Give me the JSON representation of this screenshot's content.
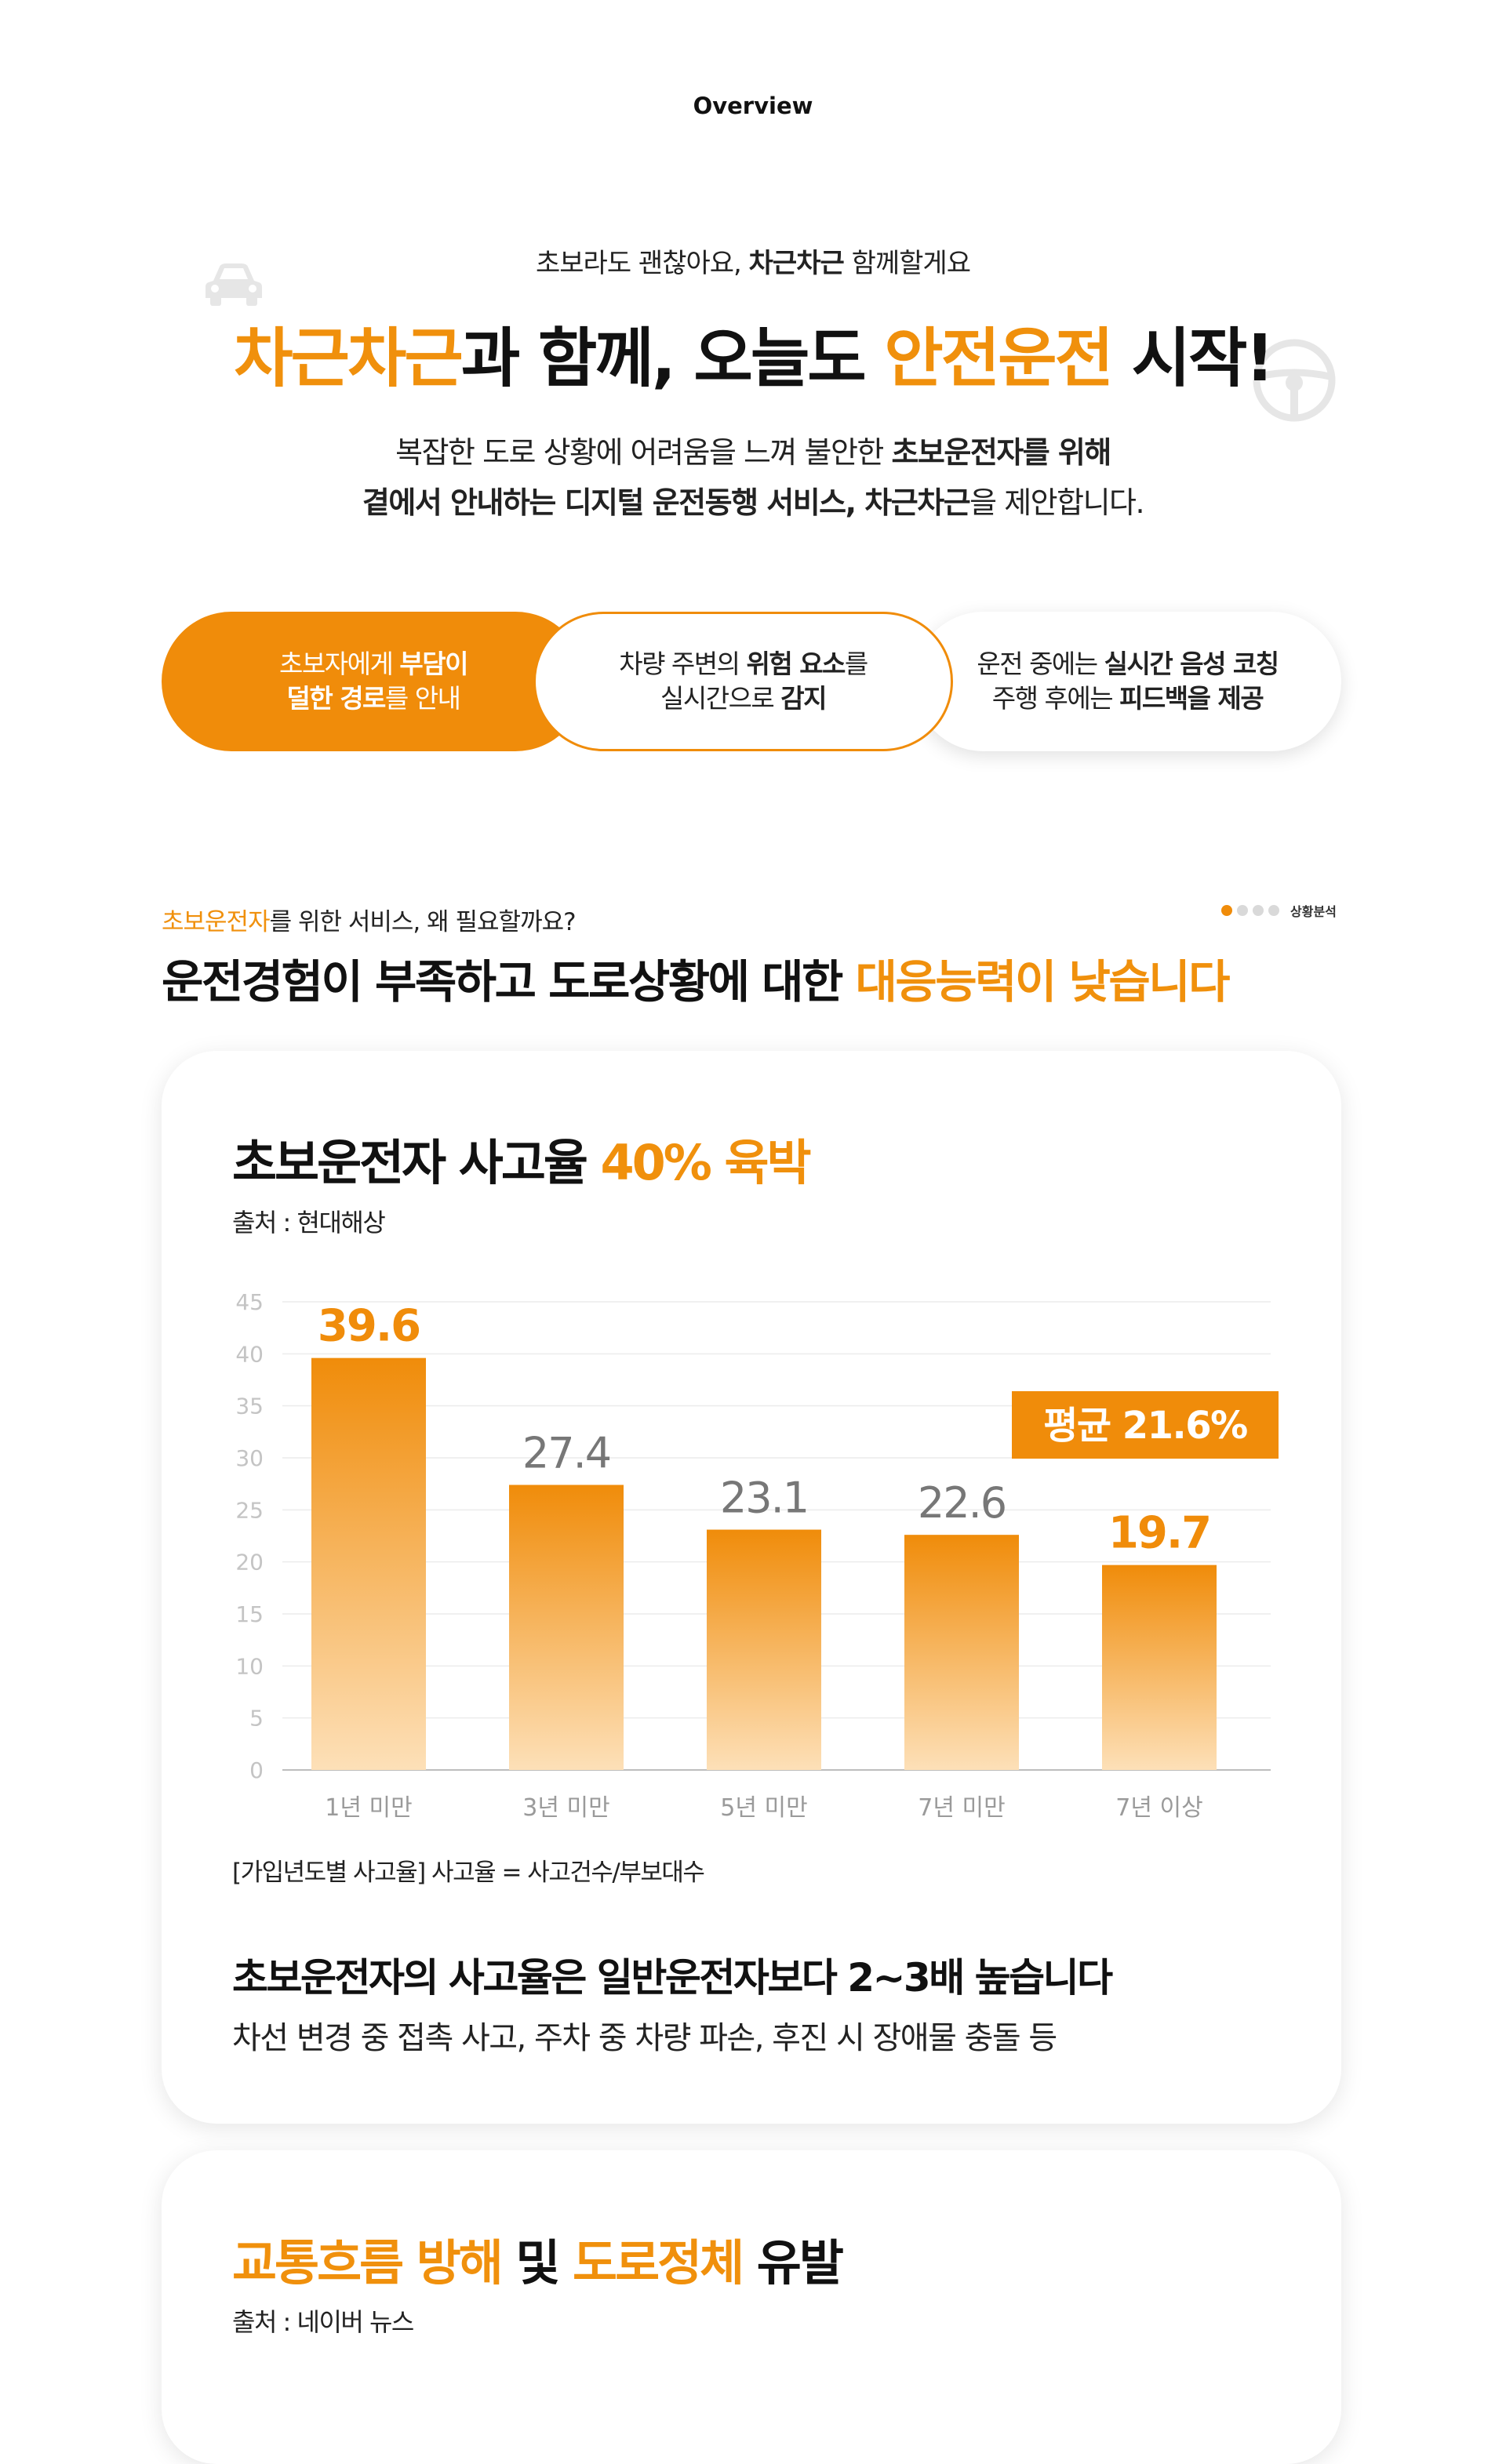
{
  "header": {
    "overview": "Overview"
  },
  "hero": {
    "tagline_pre": "초보라도 괜찮아요, ",
    "tagline_brand": "차근차근",
    "tagline_post": " 함께할게요",
    "title_brand": "차근차근",
    "title_mid": "과 함께, 오늘도 ",
    "title_highlight": "안전운전",
    "title_end": " 시작!",
    "desc_line1_pre": "복잡한 도로 상황에 어려움을 느껴 불안한 ",
    "desc_line1_bold": "초보운전자를 위해",
    "desc_line2_bold": "곁에서 안내하는 디지털 운전동행 서비스, 차근차근",
    "desc_line2_post": "을 제안합니다.",
    "icons": [
      "car-icon",
      "steering-wheel-icon"
    ]
  },
  "features": [
    {
      "l1_a": "초보자에게 ",
      "l1_b": "부담이",
      "l2_a": "덜한 경로",
      "l2_b": "를 안내"
    },
    {
      "l1_a": "차량 주변의 ",
      "l1_b": "위험 요소",
      "l1_c": "를",
      "l2_a": "실시간으로 ",
      "l2_b": "감지"
    },
    {
      "l1_a": "운전 중에는 ",
      "l1_b": "실시간 음성 코칭",
      "l2_a": "주행 후에는 ",
      "l2_b": "피드백을 제공"
    }
  ],
  "analysis": {
    "sub_highlight": "초보운전자",
    "sub_rest": "를 위한 서비스, 왜 필요할까요?",
    "title_pre": "운전경험이 부족하고 도로상황에 대한 ",
    "title_highlight": "대응능력이 낮습니다",
    "nav_label": "상황분석",
    "nav_dots": 4,
    "nav_active": 0
  },
  "card1": {
    "title_pre": "초보운전자 사고율 ",
    "title_highlight": "40% 육박",
    "source": "출처 : 현대해상",
    "note": "[가입년도별 사고율] 사고율 = 사고건수/부보대수",
    "claim": "초보운전자의 사고율은 일반운전자보다 2~3배 높습니다",
    "claim_desc": "차선 변경 중 접촉 사고, 주차 중 차량 파손, 후진 시 장애물 충돌 등"
  },
  "card2": {
    "title_a": "교통흐름 방해",
    "title_b": " 및 ",
    "title_c": "도로정체",
    "title_d": " 유발",
    "source": "출처 : 네이버 뉴스"
  },
  "colors": {
    "accent": "#f08c0a",
    "accent_light": "#fcd9a8",
    "text": "#111111"
  },
  "chart_data": {
    "type": "bar",
    "categories": [
      "1년 미만",
      "3년 미만",
      "5년 미만",
      "7년 미만",
      "7년 이상"
    ],
    "values": [
      39.6,
      27.4,
      23.1,
      22.6,
      19.7
    ],
    "value_labels": [
      "39.6",
      "27.4",
      "23.1",
      "22.6",
      "19.7"
    ],
    "highlight_index": [
      0,
      4
    ],
    "ylim": [
      0,
      45
    ],
    "yticks": [
      0,
      5,
      10,
      15,
      20,
      25,
      30,
      35,
      40,
      45
    ],
    "grid": true,
    "annotation": "평균 21.6%"
  }
}
